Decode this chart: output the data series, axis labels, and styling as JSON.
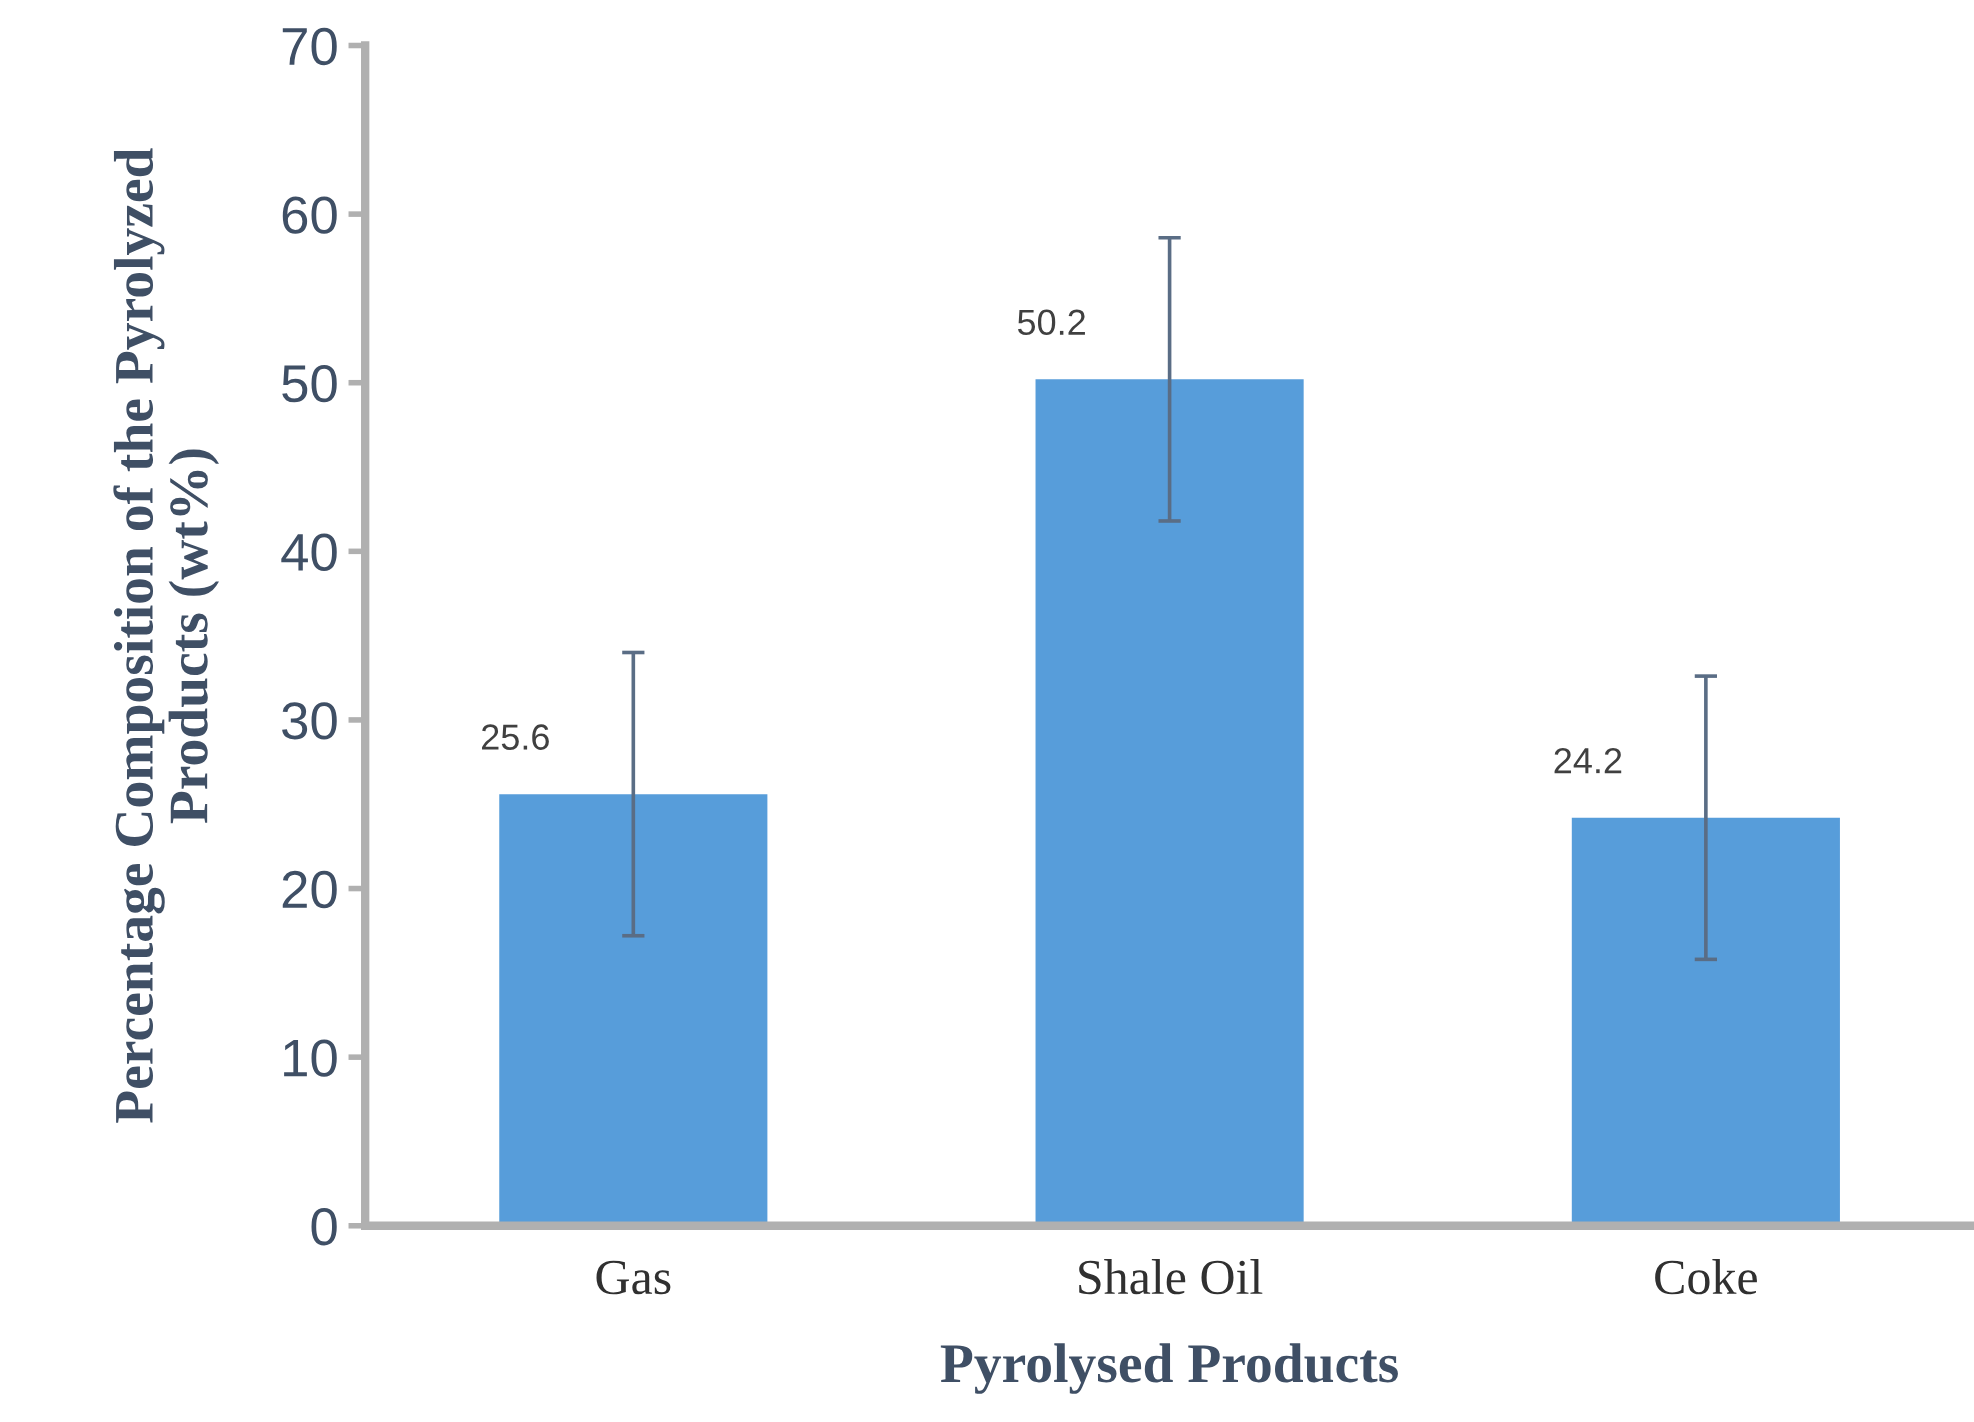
{
  "chart_data": {
    "type": "bar",
    "xlabel": "Pyrolysed Products",
    "ylabel": "Percentage Composition of the Pyrolyzed\nProducts (wt%)",
    "categories": [
      "Gas",
      "Shale Oil",
      "Coke"
    ],
    "values": [
      25.6,
      50.2,
      24.2
    ],
    "errors": [
      8.4,
      8.4,
      8.4
    ],
    "color": "#579dda",
    "ylim": [
      0,
      70
    ],
    "yticks": [
      0,
      10,
      20,
      30,
      40,
      50,
      60,
      70
    ],
    "grid": false,
    "legend": false,
    "data_labels": true
  }
}
